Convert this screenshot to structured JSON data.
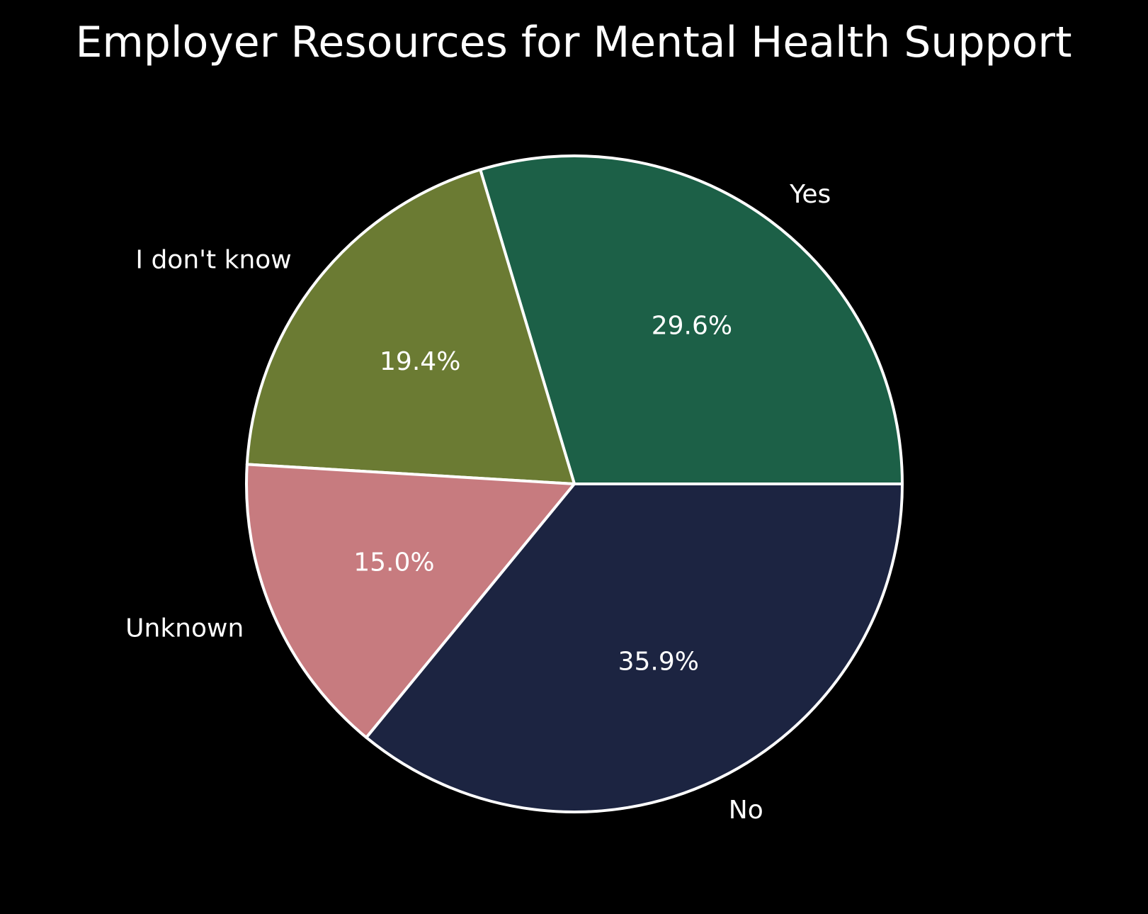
{
  "chart_data": {
    "type": "pie",
    "title": "Employer Resources for Mental Health Support",
    "slices": [
      {
        "label": "Yes",
        "value": 29.6,
        "pct_label": "29.6%",
        "color": "#1c6047"
      },
      {
        "label": "I don't know",
        "value": 19.4,
        "pct_label": "19.4%",
        "color": "#6b7b33"
      },
      {
        "label": "Unknown",
        "value": 15.0,
        "pct_label": "15.0%",
        "color": "#c77b7f"
      },
      {
        "label": "No",
        "value": 35.9,
        "pct_label": "35.9%",
        "color": "#1c2441"
      }
    ],
    "start_angle_deg": 0,
    "direction": "counterclockwise",
    "edge_color": "#ffffff",
    "background": "#000000",
    "legend": "none"
  }
}
